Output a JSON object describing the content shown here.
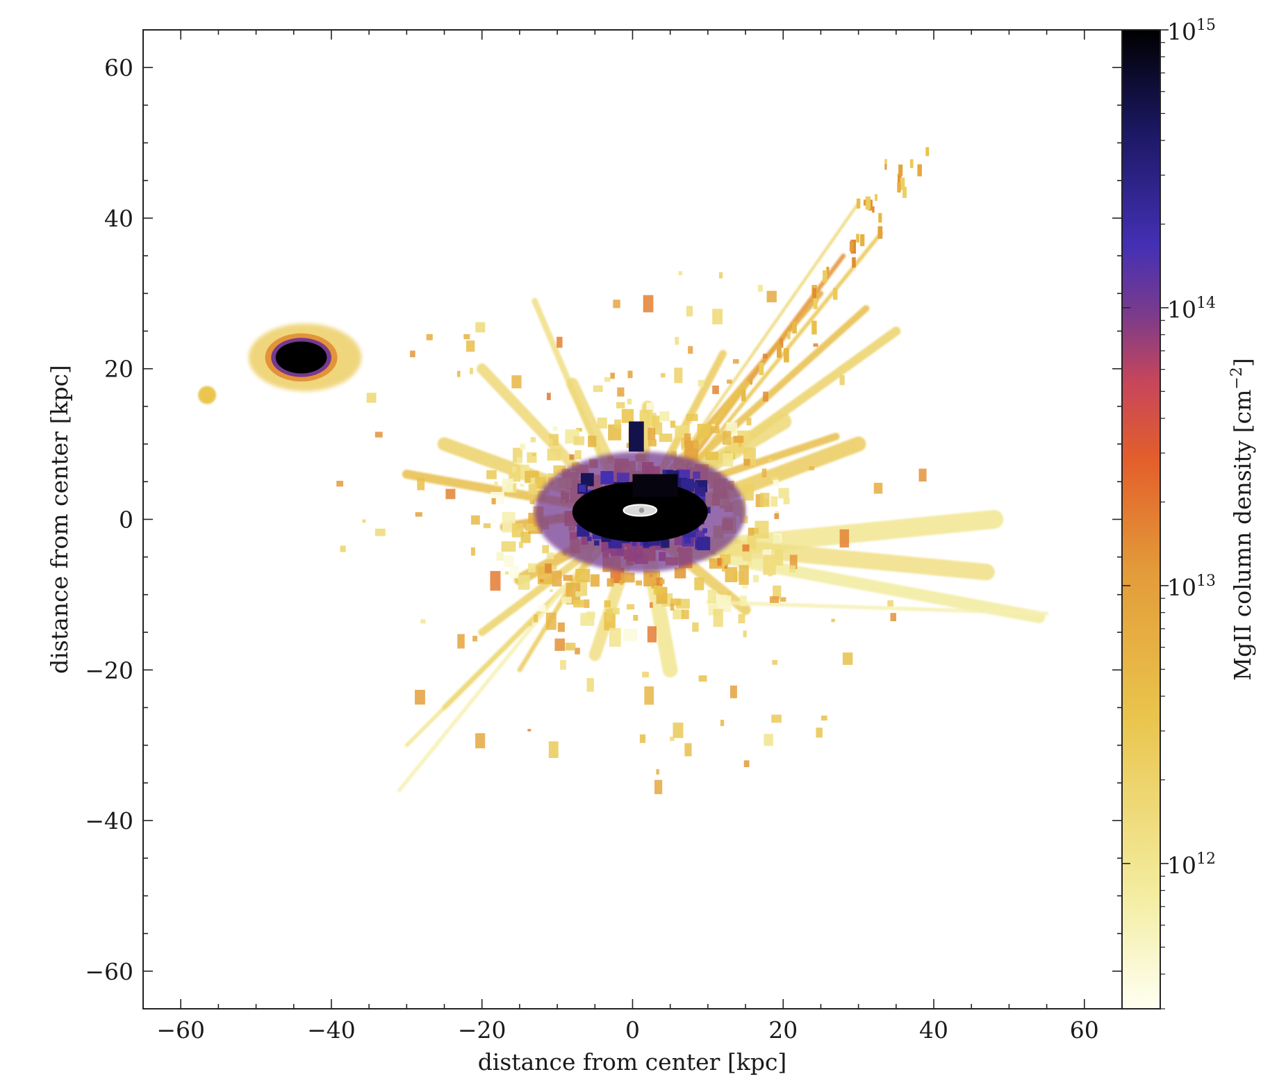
{
  "chart_data": {
    "type": "heatmap",
    "title": "",
    "xlabel": "distance from center [kpc]",
    "ylabel": "distance from center [kpc]",
    "xlim": [
      -65,
      65
    ],
    "ylim": [
      -65,
      65
    ],
    "xticks": [
      -60,
      -40,
      -20,
      0,
      20,
      40,
      60
    ],
    "yticks": [
      -60,
      -40,
      -20,
      0,
      20,
      40,
      60
    ],
    "grid": false,
    "colorbar": {
      "label": "MgII column density [cm",
      "label_exp": "−2",
      "label_close": "]",
      "scale": "log",
      "range": [
        300000000000.0,
        1000000000000000.0
      ],
      "ticks": [
        {
          "value": 1000000000000.0,
          "base": "10",
          "exp": "12"
        },
        {
          "value": 10000000000000.0,
          "base": "10",
          "exp": "13"
        },
        {
          "value": 100000000000000.0,
          "base": "10",
          "exp": "14"
        },
        {
          "value": 1000000000000000.0,
          "base": "10",
          "exp": "15"
        }
      ],
      "colors": [
        "#fffff2",
        "#f3ec9e",
        "#e9c44c",
        "#e39a39",
        "#e35f2b",
        "#c7465a",
        "#7a3b8c",
        "#4430b4",
        "#1a1760",
        "#000000"
      ]
    },
    "features": [
      {
        "name": "central galaxy",
        "x": 1,
        "y": 1,
        "rx": 9,
        "ry": 4,
        "log_n": 15
      },
      {
        "name": "satellite",
        "x": -44,
        "y": 21.5,
        "rx": 4,
        "ry": 2.5,
        "log_n": 15
      },
      {
        "name": "small clump",
        "x": -56.5,
        "y": 16.5,
        "rx": 1.2,
        "ry": 1.2,
        "log_n": 12.5
      },
      {
        "name": "northeast filament",
        "x": 20,
        "y": 20,
        "log_n": 13
      },
      {
        "name": "east stream",
        "x": 35,
        "y": -5,
        "log_n": 12
      }
    ]
  }
}
